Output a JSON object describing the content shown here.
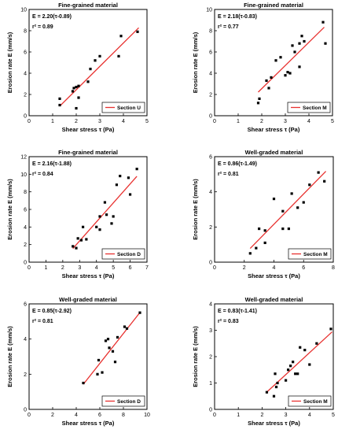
{
  "chart_data": [
    {
      "type": "scatter",
      "title": "Fine-grained material",
      "xlabel": "Shear stress τ (Pa)",
      "ylabel": "Erosion rate E (mm/s)",
      "xlim": [
        0,
        5
      ],
      "ylim": [
        0,
        10
      ],
      "xticks": [
        0,
        1,
        2,
        3,
        4,
        5
      ],
      "yticks": [
        0,
        2,
        4,
        6,
        8,
        10
      ],
      "equation": "E = 2.20(τ-0.89)",
      "r2": "r² = 0.89",
      "legend": "Section U",
      "fit": {
        "slope": 2.2,
        "intercept_tau": 0.89,
        "x_range": [
          1.3,
          4.65
        ]
      },
      "points": [
        [
          1.3,
          1.0
        ],
        [
          1.3,
          1.6
        ],
        [
          1.85,
          2.3
        ],
        [
          1.9,
          2.6
        ],
        [
          2.0,
          2.7
        ],
        [
          2.0,
          0.7
        ],
        [
          2.1,
          1.7
        ],
        [
          2.1,
          2.8
        ],
        [
          2.5,
          3.2
        ],
        [
          2.6,
          4.4
        ],
        [
          2.8,
          5.2
        ],
        [
          3.0,
          5.6
        ],
        [
          3.8,
          5.6
        ],
        [
          3.9,
          7.5
        ],
        [
          4.6,
          7.9
        ]
      ]
    },
    {
      "type": "scatter",
      "title": "Fine-grained material",
      "xlabel": "Shear stress τ (Pa)",
      "ylabel": "Erosion rate E (mm/s)",
      "xlim": [
        0,
        5
      ],
      "ylim": [
        0,
        10
      ],
      "xticks": [
        0,
        1,
        2,
        3,
        4,
        5
      ],
      "yticks": [
        0,
        2,
        4,
        6,
        8,
        10
      ],
      "equation": "E = 2.18(τ-0.83)",
      "r2": "r² = 0.77",
      "legend": "Section M",
      "fit": {
        "slope": 2.18,
        "intercept_tau": 0.83,
        "x_range": [
          1.85,
          4.65
        ]
      },
      "points": [
        [
          1.85,
          1.2
        ],
        [
          1.9,
          1.6
        ],
        [
          2.2,
          3.3
        ],
        [
          2.3,
          2.6
        ],
        [
          2.4,
          3.6
        ],
        [
          2.6,
          5.2
        ],
        [
          2.8,
          5.5
        ],
        [
          3.0,
          3.8
        ],
        [
          3.1,
          4.1
        ],
        [
          3.2,
          4.0
        ],
        [
          3.3,
          6.6
        ],
        [
          3.4,
          6.0
        ],
        [
          3.6,
          4.6
        ],
        [
          3.6,
          6.8
        ],
        [
          3.7,
          7.5
        ],
        [
          3.8,
          7.0
        ],
        [
          4.6,
          8.8
        ],
        [
          4.7,
          6.8
        ]
      ]
    },
    {
      "type": "scatter",
      "title": "Fine-grained material",
      "xlabel": "Shear stress τ (Pa)",
      "ylabel": "Erosion rate E (mm/s)",
      "xlim": [
        0,
        7
      ],
      "ylim": [
        0,
        12
      ],
      "xticks": [
        0,
        1,
        2,
        3,
        4,
        5,
        6,
        7
      ],
      "yticks": [
        0,
        2,
        4,
        6,
        8,
        10,
        12
      ],
      "equation": "E = 2.16(τ-1.88)",
      "r2": "r² = 0.84",
      "legend": "Section D",
      "fit": {
        "slope": 2.16,
        "intercept_tau": 1.88,
        "x_range": [
          2.6,
          6.4
        ]
      },
      "points": [
        [
          2.6,
          1.8
        ],
        [
          2.8,
          1.6
        ],
        [
          2.9,
          2.7
        ],
        [
          3.1,
          2.5
        ],
        [
          3.2,
          4.0
        ],
        [
          3.4,
          2.6
        ],
        [
          4.0,
          4.0
        ],
        [
          4.2,
          3.7
        ],
        [
          4.2,
          5.2
        ],
        [
          4.5,
          6.8
        ],
        [
          4.6,
          5.4
        ],
        [
          4.9,
          4.4
        ],
        [
          5.0,
          5.2
        ],
        [
          5.2,
          8.8
        ],
        [
          5.4,
          9.8
        ],
        [
          5.9,
          9.6
        ],
        [
          6.0,
          7.7
        ],
        [
          6.4,
          10.6
        ]
      ]
    },
    {
      "type": "scatter",
      "title": "Well-graded material",
      "xlabel": "Shear stress τ (Pa)",
      "ylabel": "Erosion rate E (mm/s)",
      "xlim": [
        0,
        8
      ],
      "ylim": [
        0,
        6
      ],
      "xticks": [
        0,
        2,
        4,
        6,
        8
      ],
      "yticks": [
        0,
        2,
        4,
        6
      ],
      "equation": "E = 0.86(τ-1.49)",
      "r2": "r² = 0.81",
      "legend": "Section M",
      "fit": {
        "slope": 0.86,
        "intercept_tau": 1.49,
        "x_range": [
          2.4,
          7.5
        ]
      },
      "points": [
        [
          2.4,
          0.5
        ],
        [
          2.8,
          0.8
        ],
        [
          3.0,
          1.9
        ],
        [
          3.4,
          1.8
        ],
        [
          3.4,
          1.1
        ],
        [
          4.0,
          3.6
        ],
        [
          4.6,
          1.9
        ],
        [
          4.6,
          2.9
        ],
        [
          5.0,
          1.9
        ],
        [
          5.2,
          3.9
        ],
        [
          5.6,
          3.1
        ],
        [
          6.0,
          3.4
        ],
        [
          6.4,
          4.4
        ],
        [
          7.0,
          5.1
        ],
        [
          7.4,
          4.6
        ]
      ]
    },
    {
      "type": "scatter",
      "title": "Well-graded material",
      "xlabel": "Shear stress τ (Pa)",
      "ylabel": "Erosion rate E (mm/s)",
      "xlim": [
        0,
        10
      ],
      "ylim": [
        0,
        6
      ],
      "xticks": [
        0,
        2,
        4,
        6,
        8,
        10
      ],
      "yticks": [
        0,
        2,
        4,
        6
      ],
      "equation": "E = 0.85(τ-2.92)",
      "r2": "r² = 0.81",
      "legend": "Section D",
      "fit": {
        "slope": 0.85,
        "intercept_tau": 2.92,
        "x_range": [
          4.6,
          9.4
        ]
      },
      "points": [
        [
          4.6,
          1.5
        ],
        [
          5.8,
          2.0
        ],
        [
          5.9,
          2.8
        ],
        [
          6.2,
          2.1
        ],
        [
          6.5,
          3.9
        ],
        [
          6.7,
          4.0
        ],
        [
          6.8,
          3.5
        ],
        [
          7.1,
          3.3
        ],
        [
          7.3,
          2.7
        ],
        [
          7.5,
          4.1
        ],
        [
          8.1,
          4.7
        ],
        [
          8.3,
          4.6
        ],
        [
          9.4,
          5.5
        ]
      ]
    },
    {
      "type": "scatter",
      "title": "Well-graded material",
      "xlabel": "Shear stress τ (Pa)",
      "ylabel": "Erosion rate E (mm/s)",
      "xlim": [
        0,
        5
      ],
      "ylim": [
        0,
        4
      ],
      "xticks": [
        0,
        1,
        2,
        3,
        4,
        5
      ],
      "yticks": [
        0,
        1,
        2,
        3,
        4
      ],
      "equation": "E = 0.83(τ-1.41)",
      "r2": "r² = 0.83",
      "legend": "Section M",
      "fit": {
        "slope": 0.83,
        "intercept_tau": 1.41,
        "x_range": [
          2.2,
          4.95
        ]
      },
      "points": [
        [
          2.2,
          0.65
        ],
        [
          2.5,
          0.5
        ],
        [
          2.55,
          1.35
        ],
        [
          2.6,
          0.85
        ],
        [
          2.65,
          1.0
        ],
        [
          3.0,
          1.1
        ],
        [
          3.1,
          1.5
        ],
        [
          3.2,
          1.65
        ],
        [
          3.3,
          1.8
        ],
        [
          3.4,
          1.35
        ],
        [
          3.5,
          1.35
        ],
        [
          3.6,
          2.35
        ],
        [
          3.8,
          2.25
        ],
        [
          4.0,
          1.7
        ],
        [
          4.3,
          2.5
        ],
        [
          4.9,
          3.05
        ]
      ]
    }
  ]
}
